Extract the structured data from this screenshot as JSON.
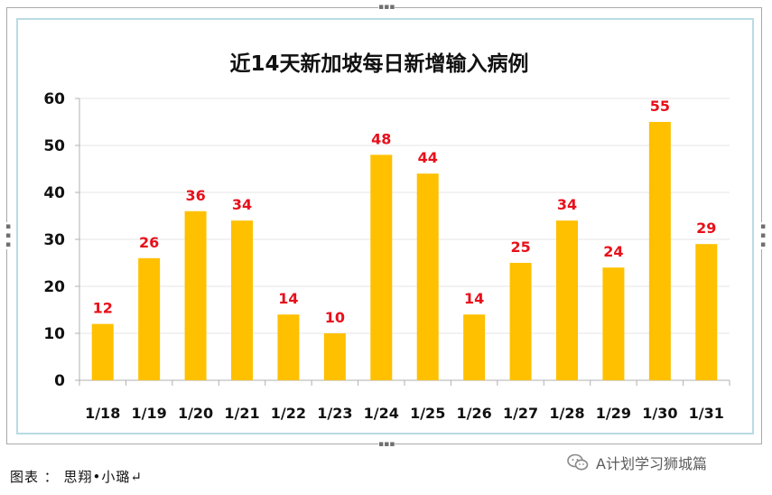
{
  "chart_data": {
    "type": "bar",
    "title": "近14天新加坡每日新增输入病例",
    "categories": [
      "1/18",
      "1/19",
      "1/20",
      "1/21",
      "1/22",
      "1/23",
      "1/24",
      "1/25",
      "1/26",
      "1/27",
      "1/28",
      "1/29",
      "1/30",
      "1/31"
    ],
    "values": [
      12,
      26,
      36,
      34,
      14,
      10,
      48,
      44,
      14,
      25,
      34,
      24,
      55,
      29
    ],
    "ylim": [
      0,
      60
    ],
    "yticks": [
      0,
      10,
      20,
      30,
      40,
      50,
      60
    ],
    "grid": true,
    "legend": "none",
    "bar_color": "#ffc000",
    "label_color": "#e8101b"
  },
  "caption": "图表 ： 思翔•小璐↵",
  "watermark": {
    "icon": "wechat-icon",
    "text": "A计划学习狮城篇"
  }
}
